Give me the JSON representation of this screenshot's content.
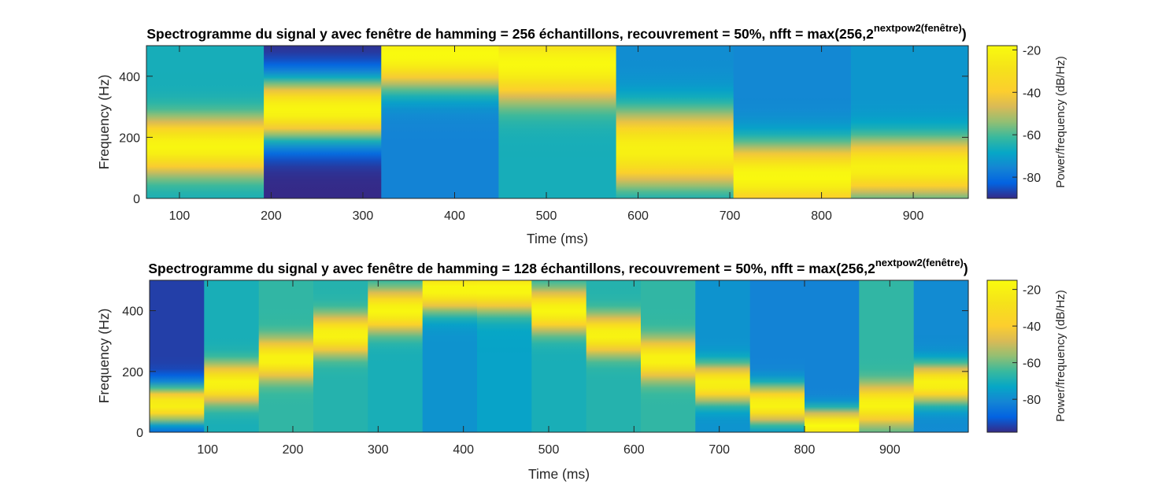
{
  "chart_data": [
    {
      "type": "heatmap",
      "title": "Spectrogramme du signal y avec fenêtre de hamming  = 256 échantillons, recouvrement = 50%, nfft = max(256,2",
      "title_superscript": "nextpow2(fenêtre)",
      "title_suffix": ")",
      "xlabel": "Time (ms)",
      "ylabel": "Frequency (Hz)",
      "colorbar_label": "Power/frequency (dB/Hz)",
      "xlim": [
        64,
        960
      ],
      "ylim": [
        0,
        500
      ],
      "clim": [
        -90,
        -18
      ],
      "xticks": [
        100,
        200,
        300,
        400,
        500,
        600,
        700,
        800,
        900
      ],
      "yticks": [
        0,
        200,
        400
      ],
      "colorbar_ticks": [
        -20,
        -40,
        -60,
        -80
      ],
      "segments": [
        {
          "t0": 64,
          "t1": 192,
          "f_center": 170,
          "width": 190,
          "peak_db": -20,
          "floor_db": -66
        },
        {
          "t0": 192,
          "t1": 320,
          "f_center": 290,
          "width": 220,
          "peak_db": -20,
          "floor_db": -90
        },
        {
          "t0": 320,
          "t1": 448,
          "f_center": 470,
          "width": 230,
          "peak_db": -18,
          "floor_db": -76
        },
        {
          "t0": 448,
          "t1": 576,
          "f_center": 440,
          "width": 250,
          "peak_db": -19,
          "floor_db": -66
        },
        {
          "t0": 576,
          "t1": 704,
          "f_center": 160,
          "width": 270,
          "peak_db": -22,
          "floor_db": -74
        },
        {
          "t0": 704,
          "t1": 832,
          "f_center": 70,
          "width": 230,
          "peak_db": -19,
          "floor_db": -75
        },
        {
          "t0": 832,
          "t1": 960,
          "f_center": 100,
          "width": 200,
          "peak_db": -22,
          "floor_db": -72
        }
      ]
    },
    {
      "type": "heatmap",
      "title": "Spectrogramme du signal y avec fenêtre de hamming = 128 échantillons, recouvrement = 50%, nfft = max(256,2",
      "title_superscript": "nextpow2(fenêtre)",
      "title_suffix": ")",
      "xlabel": "Time (ms)",
      "ylabel": "Frequency (Hz)",
      "colorbar_label": "Power/frequency (dB/Hz)",
      "xlim": [
        32,
        992
      ],
      "ylim": [
        0,
        500
      ],
      "clim": [
        -98,
        -15
      ],
      "xticks": [
        100,
        200,
        300,
        400,
        500,
        600,
        700,
        800,
        900
      ],
      "yticks": [
        0,
        200,
        400
      ],
      "colorbar_ticks": [
        -20,
        -40,
        -60,
        -80
      ],
      "segments": [
        {
          "t0": 32,
          "t1": 96,
          "f_center": 90,
          "width": 130,
          "peak_db": -20,
          "floor_db": -95
        },
        {
          "t0": 96,
          "t1": 160,
          "f_center": 160,
          "width": 130,
          "peak_db": -18,
          "floor_db": -70
        },
        {
          "t0": 160,
          "t1": 224,
          "f_center": 240,
          "width": 130,
          "peak_db": -18,
          "floor_db": -66
        },
        {
          "t0": 224,
          "t1": 288,
          "f_center": 320,
          "width": 130,
          "peak_db": -18,
          "floor_db": -68
        },
        {
          "t0": 288,
          "t1": 352,
          "f_center": 400,
          "width": 140,
          "peak_db": -17,
          "floor_db": -70
        },
        {
          "t0": 352,
          "t1": 416,
          "f_center": 470,
          "width": 150,
          "peak_db": -16,
          "floor_db": -78
        },
        {
          "t0": 416,
          "t1": 480,
          "f_center": 470,
          "width": 150,
          "peak_db": -16,
          "floor_db": -74
        },
        {
          "t0": 480,
          "t1": 544,
          "f_center": 400,
          "width": 140,
          "peak_db": -17,
          "floor_db": -70
        },
        {
          "t0": 544,
          "t1": 608,
          "f_center": 320,
          "width": 130,
          "peak_db": -18,
          "floor_db": -68
        },
        {
          "t0": 608,
          "t1": 672,
          "f_center": 240,
          "width": 130,
          "peak_db": -18,
          "floor_db": -66
        },
        {
          "t0": 672,
          "t1": 736,
          "f_center": 160,
          "width": 130,
          "peak_db": -19,
          "floor_db": -78
        },
        {
          "t0": 736,
          "t1": 800,
          "f_center": 90,
          "width": 130,
          "peak_db": -18,
          "floor_db": -82
        },
        {
          "t0": 800,
          "t1": 864,
          "f_center": 20,
          "width": 110,
          "peak_db": -15,
          "floor_db": -82
        },
        {
          "t0": 864,
          "t1": 928,
          "f_center": 90,
          "width": 130,
          "peak_db": -18,
          "floor_db": -66
        },
        {
          "t0": 928,
          "t1": 992,
          "f_center": 160,
          "width": 130,
          "peak_db": -18,
          "floor_db": -80
        }
      ]
    }
  ],
  "colormap": "parula",
  "colors": {
    "axis": "#262626",
    "background": "#ffffff"
  }
}
